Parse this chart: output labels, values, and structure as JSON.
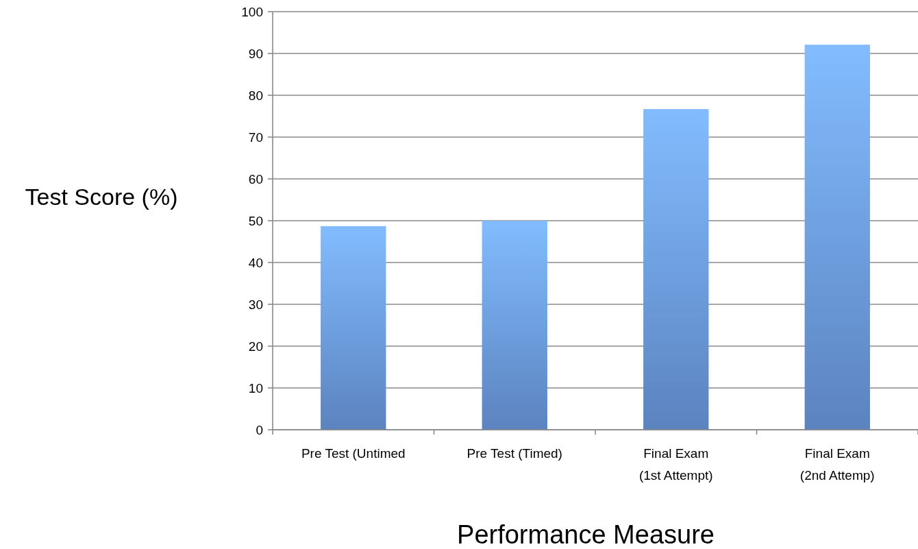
{
  "chart_data": {
    "type": "bar",
    "categories": [
      "Pre Test (Untimed",
      "Pre Test (Timed)",
      "Final Exam\n(1st Attempt)",
      "Final Exam\n(2nd Attemp)"
    ],
    "values": [
      48.7,
      50,
      76.7,
      92.1
    ],
    "color": "#6fa0e8",
    "xlabel": "Performance Measure",
    "ylabel": "Test Score (%)",
    "ylim": [
      0,
      100
    ],
    "yticks": [
      0,
      10,
      20,
      30,
      40,
      50,
      60,
      70,
      80,
      90,
      100
    ],
    "grid": "y"
  }
}
